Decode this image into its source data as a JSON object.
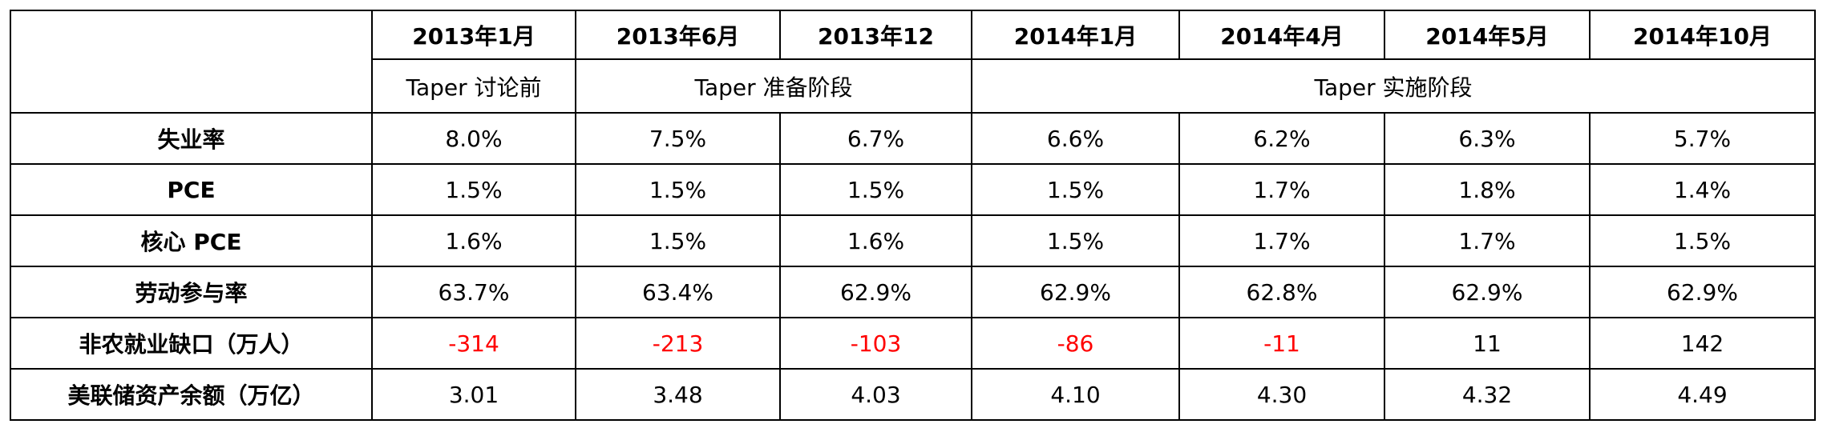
{
  "table": {
    "periods": [
      "2013年1月",
      "2013年6月",
      "2013年12",
      "2014年1月",
      "2014年4月",
      "2014年5月",
      "2014年10月"
    ],
    "stages": [
      "Taper 讨论前",
      "Taper 准备阶段",
      "Taper 实施阶段"
    ],
    "rows": [
      [
        "失业率",
        "8.0%",
        "7.5%",
        "6.7%",
        "6.6%",
        "6.2%",
        "6.3%",
        "5.7%"
      ],
      [
        "PCE",
        "1.5%",
        "1.5%",
        "1.5%",
        "1.5%",
        "1.7%",
        "1.8%",
        "1.4%"
      ],
      [
        "核心 PCE",
        "1.6%",
        "1.5%",
        "1.6%",
        "1.5%",
        "1.7%",
        "1.7%",
        "1.5%"
      ],
      [
        "劳动参与率",
        "63.7%",
        "63.4%",
        "62.9%",
        "62.9%",
        "62.8%",
        "62.9%",
        "62.9%"
      ],
      [
        "非农就业缺口（万人）",
        "-314",
        "-213",
        "-103",
        "-86",
        "-11",
        "11",
        "142"
      ],
      [
        "美联储资产余额（万亿）",
        "3.01",
        "3.48",
        "4.03",
        "4.10",
        "4.30",
        "4.32",
        "4.49"
      ]
    ],
    "negative_color": "#ff0000"
  }
}
